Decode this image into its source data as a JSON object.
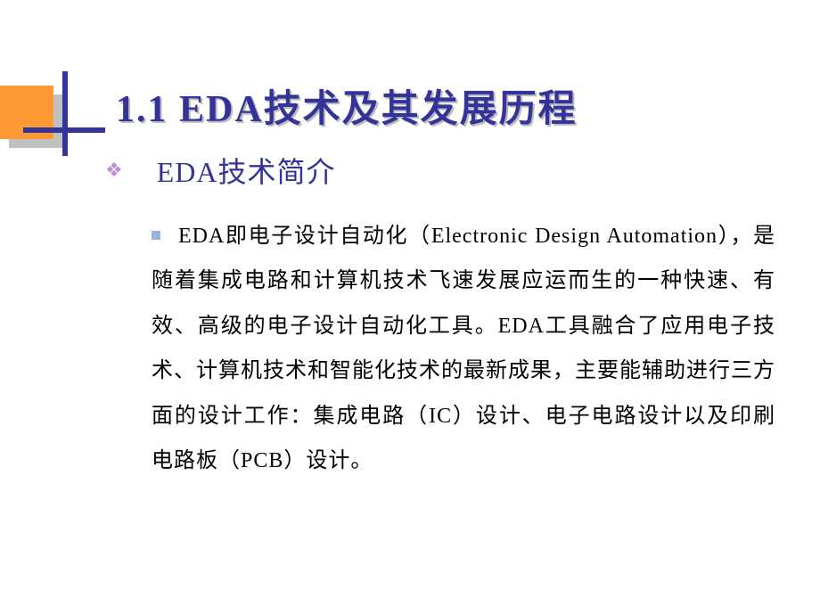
{
  "slide": {
    "title": "1.1 EDA技术及其发展历程",
    "decoration": {
      "orange_color": "#ff9933",
      "shadow_color": "#c0c0c0",
      "line_color": "#333399"
    },
    "subtitle": {
      "bullet": "❖",
      "bullet_color": "#bf8fd9",
      "text": "EDA技术简介",
      "text_color": "#333399"
    },
    "body": {
      "bullet_color": "#9ab3e0",
      "text": "EDA即电子设计自动化（Electronic Design Automation），是随着集成电路和计算机技术飞速发展应运而生的一种快速、有效、高级的电子设计自动化工具。EDA工具融合了应用电子技术、计算机技术和智能化技术的最新成果，主要能辅助进行三方面的设计工作：集成电路（IC）设计、电子电路设计以及印刷电路板（PCB）设计。",
      "text_color": "#000000"
    },
    "background_color": "#ffffff",
    "title_color": "#333399",
    "title_shadow": "#bbbbbb"
  }
}
